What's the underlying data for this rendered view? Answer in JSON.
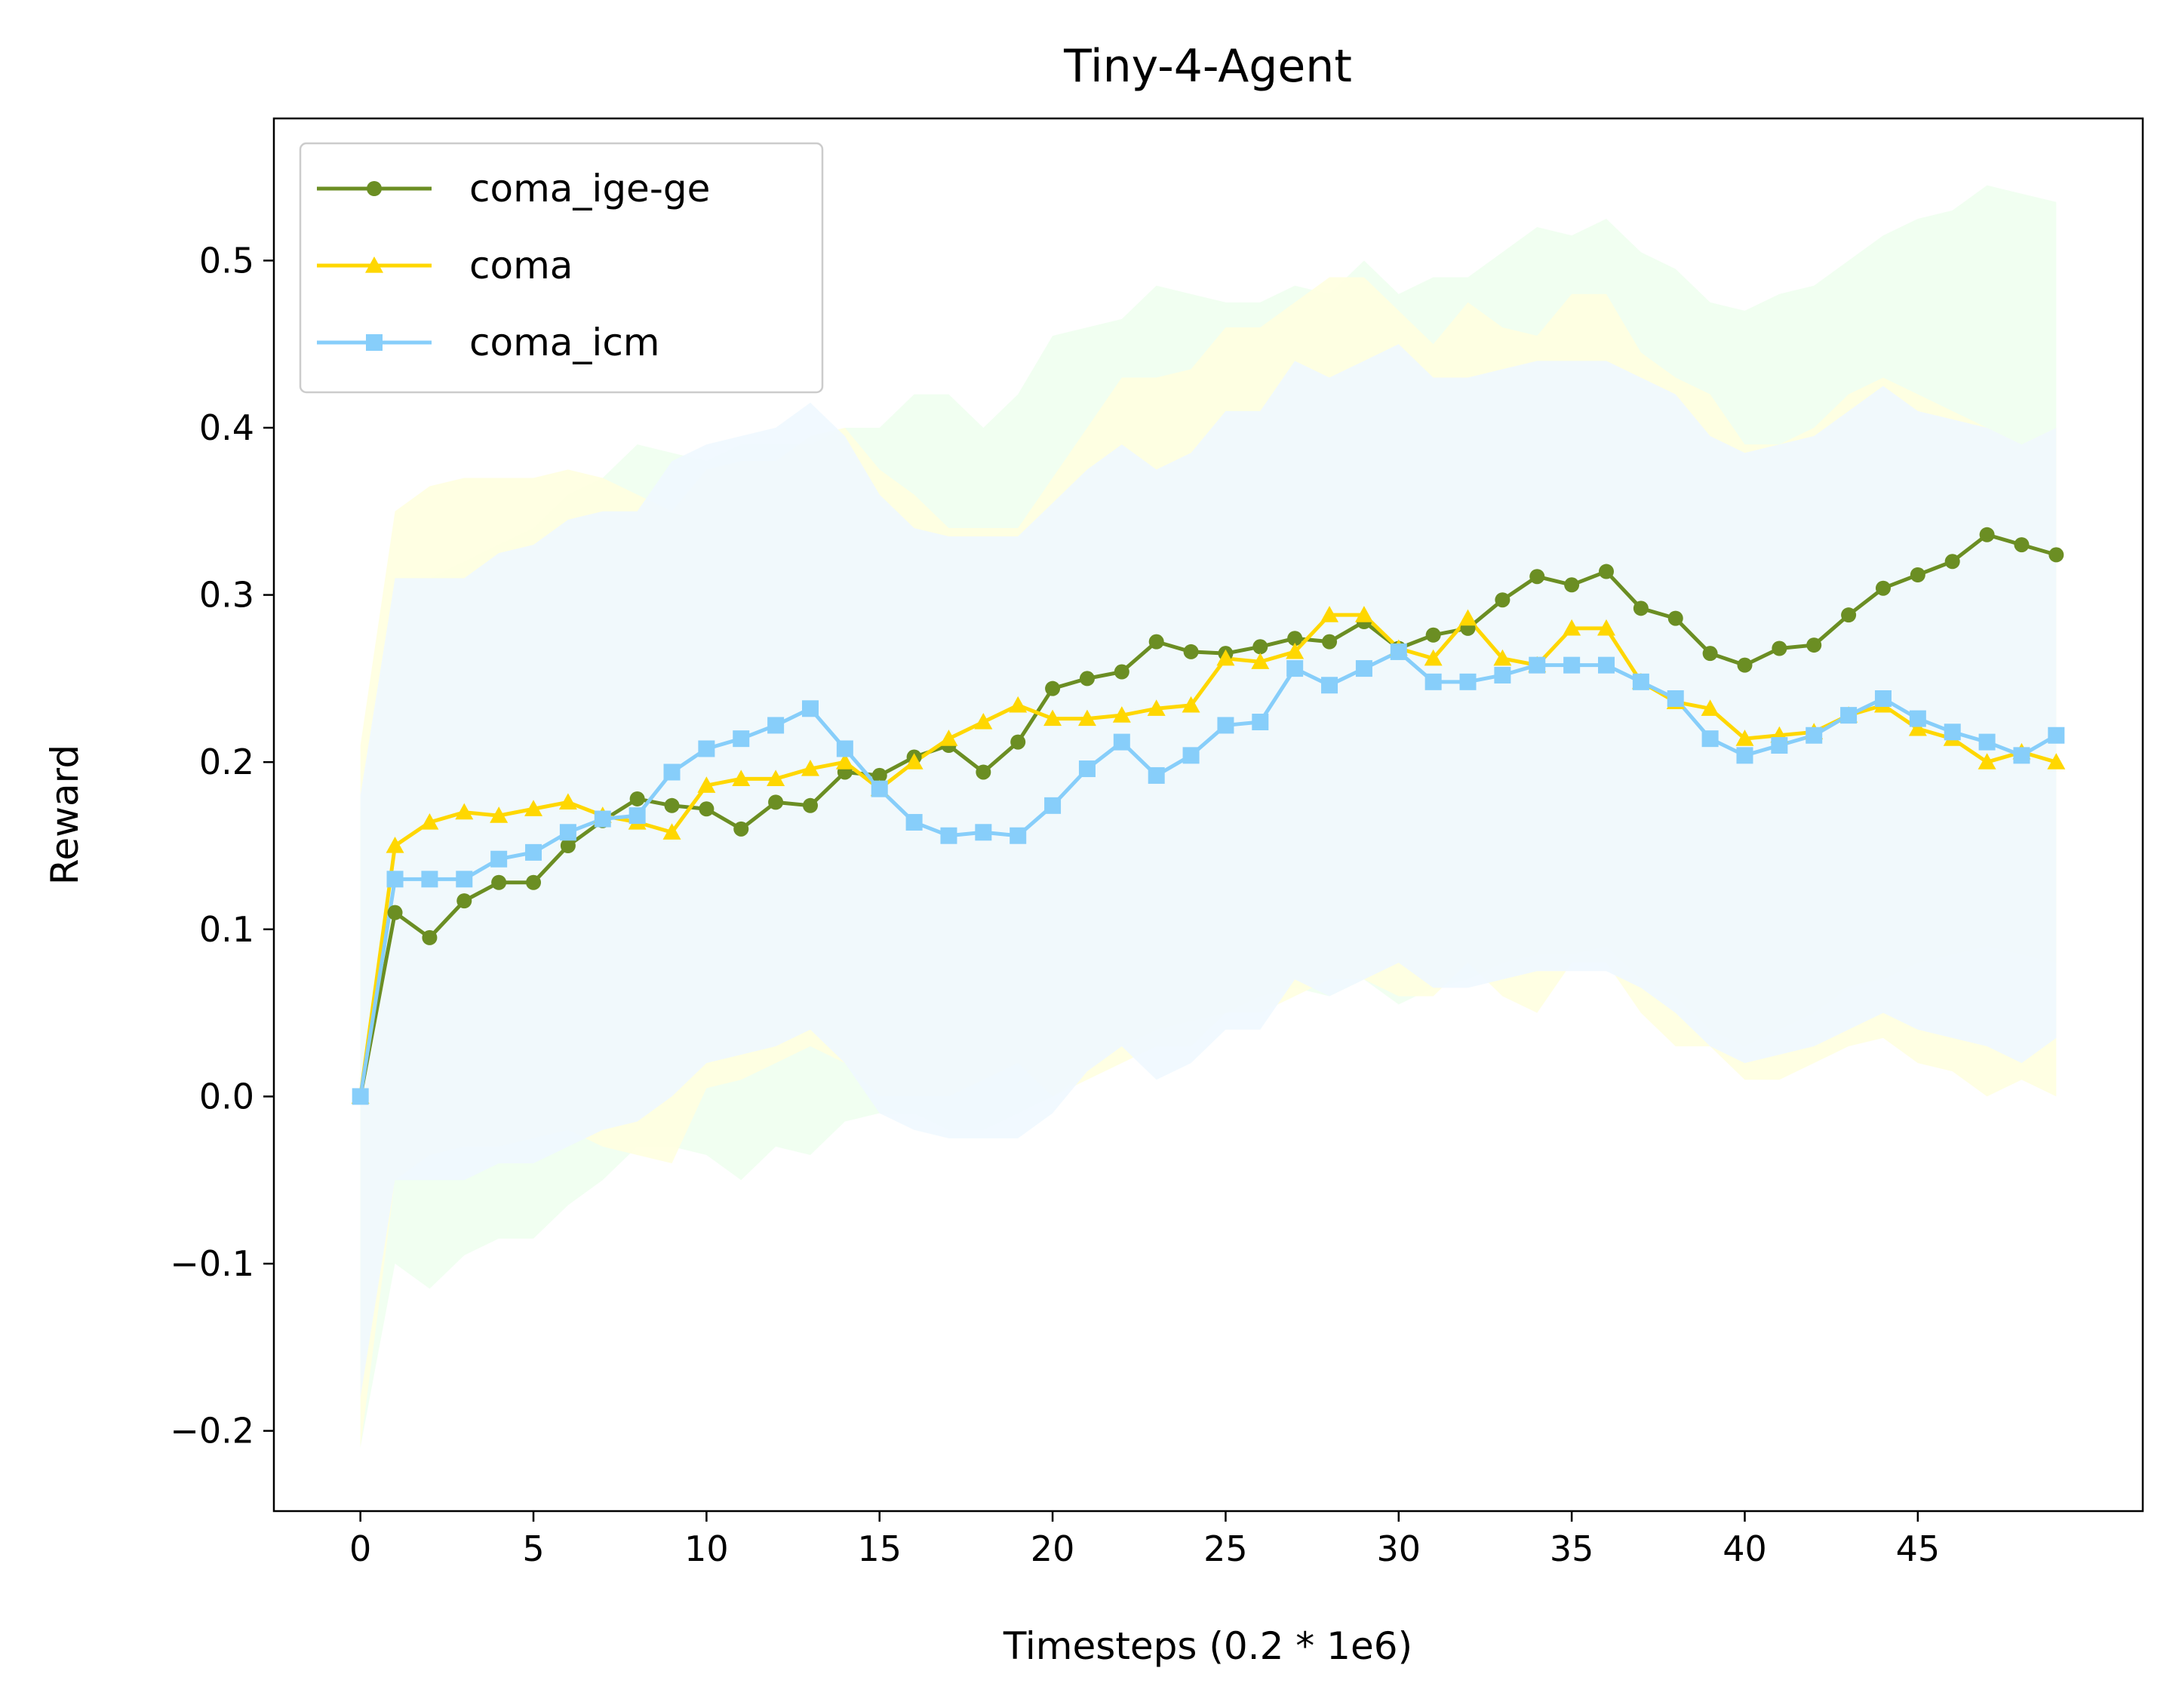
{
  "chart_data": {
    "type": "line",
    "title": "Tiny-4-Agent",
    "xlabel": "Timesteps (0.2 * 1e6)",
    "ylabel": "Reward",
    "xlim": [
      -2.5,
      51.5
    ],
    "ylim": [
      -0.248,
      0.585
    ],
    "xticks": [
      0,
      5,
      10,
      15,
      20,
      25,
      30,
      35,
      40,
      45
    ],
    "xtick_labels": [
      "0",
      "5",
      "10",
      "15",
      "20",
      "25",
      "30",
      "35",
      "40",
      "45"
    ],
    "yticks": [
      -0.2,
      -0.1,
      0.0,
      0.1,
      0.2,
      0.3,
      0.4,
      0.5
    ],
    "ytick_labels": [
      "−0.2",
      "−0.1",
      "0.0",
      "0.1",
      "0.2",
      "0.3",
      "0.4",
      "0.5"
    ],
    "grid": false,
    "legend_position": "top-left",
    "x": [
      0,
      1,
      2,
      3,
      4,
      5,
      6,
      7,
      8,
      9,
      10,
      11,
      12,
      13,
      14,
      15,
      16,
      17,
      18,
      19,
      20,
      21,
      22,
      23,
      24,
      25,
      26,
      27,
      28,
      29,
      30,
      31,
      32,
      33,
      34,
      35,
      36,
      37,
      38,
      39,
      40,
      41,
      42,
      43,
      44,
      45,
      46,
      47,
      48,
      49
    ],
    "series": [
      {
        "name": "coma_ige-ge",
        "color": "#6b8e23",
        "band_color": "#f0fff0",
        "marker": "circle",
        "values": [
          0.0,
          0.11,
          0.095,
          0.117,
          0.128,
          0.128,
          0.15,
          0.165,
          0.178,
          0.174,
          0.172,
          0.16,
          0.176,
          0.174,
          0.194,
          0.192,
          0.203,
          0.21,
          0.194,
          0.212,
          0.244,
          0.25,
          0.254,
          0.272,
          0.266,
          0.265,
          0.269,
          0.274,
          0.272,
          0.284,
          0.268,
          0.276,
          0.28,
          0.297,
          0.311,
          0.306,
          0.314,
          0.292,
          0.286,
          0.265,
          0.258,
          0.268,
          0.27,
          0.288,
          0.304,
          0.312,
          0.32,
          0.336,
          0.33,
          0.324
        ],
        "lower": [
          -0.21,
          -0.1,
          -0.115,
          -0.095,
          -0.085,
          -0.085,
          -0.065,
          -0.05,
          -0.03,
          -0.03,
          -0.035,
          -0.05,
          -0.03,
          -0.035,
          -0.015,
          -0.01,
          -0.01,
          -0.02,
          -0.02,
          -0.01,
          0.0,
          0.015,
          0.03,
          0.04,
          0.045,
          0.05,
          0.06,
          0.065,
          0.06,
          0.07,
          0.055,
          0.065,
          0.07,
          0.08,
          0.085,
          0.085,
          0.09,
          0.07,
          0.06,
          0.04,
          0.03,
          0.04,
          0.05,
          0.065,
          0.07,
          0.08,
          0.085,
          0.09,
          0.085,
          0.08
        ],
        "upper": [
          0.17,
          0.31,
          0.31,
          0.32,
          0.33,
          0.34,
          0.36,
          0.37,
          0.39,
          0.385,
          0.38,
          0.39,
          0.39,
          0.39,
          0.4,
          0.4,
          0.42,
          0.42,
          0.4,
          0.42,
          0.455,
          0.46,
          0.465,
          0.485,
          0.48,
          0.475,
          0.475,
          0.485,
          0.48,
          0.5,
          0.48,
          0.49,
          0.49,
          0.505,
          0.52,
          0.515,
          0.525,
          0.505,
          0.495,
          0.475,
          0.47,
          0.48,
          0.485,
          0.5,
          0.515,
          0.525,
          0.53,
          0.545,
          0.54,
          0.535
        ]
      },
      {
        "name": "coma",
        "color": "#ffd700",
        "band_color": "#ffffe0",
        "marker": "triangle",
        "values": [
          0.0,
          0.15,
          0.164,
          0.17,
          0.168,
          0.172,
          0.176,
          0.168,
          0.164,
          0.158,
          0.186,
          0.19,
          0.19,
          0.196,
          0.2,
          0.184,
          0.2,
          0.214,
          0.224,
          0.234,
          0.226,
          0.226,
          0.228,
          0.232,
          0.234,
          0.262,
          0.26,
          0.266,
          0.288,
          0.288,
          0.268,
          0.262,
          0.286,
          0.262,
          0.258,
          0.28,
          0.28,
          0.248,
          0.236,
          0.232,
          0.214,
          0.216,
          0.218,
          0.228,
          0.234,
          0.22,
          0.214,
          0.2,
          0.206,
          0.2
        ],
        "lower": [
          -0.21,
          -0.05,
          -0.035,
          -0.03,
          -0.03,
          -0.025,
          -0.02,
          -0.03,
          -0.035,
          -0.04,
          0.005,
          0.01,
          0.02,
          0.03,
          0.02,
          0.0,
          0.0,
          0.0,
          0.01,
          0.02,
          0.0,
          0.01,
          0.02,
          0.03,
          0.03,
          0.05,
          0.05,
          0.06,
          0.07,
          0.07,
          0.06,
          0.06,
          0.08,
          0.06,
          0.05,
          0.08,
          0.08,
          0.05,
          0.03,
          0.03,
          0.01,
          0.01,
          0.02,
          0.03,
          0.035,
          0.02,
          0.015,
          0.0,
          0.01,
          0.0
        ],
        "upper": [
          0.21,
          0.35,
          0.365,
          0.37,
          0.37,
          0.37,
          0.375,
          0.37,
          0.36,
          0.35,
          0.375,
          0.38,
          0.38,
          0.395,
          0.4,
          0.375,
          0.36,
          0.34,
          0.34,
          0.34,
          0.37,
          0.4,
          0.43,
          0.43,
          0.435,
          0.46,
          0.46,
          0.475,
          0.49,
          0.49,
          0.47,
          0.45,
          0.475,
          0.46,
          0.455,
          0.48,
          0.48,
          0.445,
          0.43,
          0.42,
          0.39,
          0.39,
          0.4,
          0.42,
          0.43,
          0.42,
          0.41,
          0.4,
          0.39,
          0.4
        ]
      },
      {
        "name": "coma_icm",
        "color": "#87cefa",
        "band_color": "#f0f8ff",
        "marker": "square",
        "values": [
          0.0,
          0.13,
          0.13,
          0.13,
          0.142,
          0.146,
          0.158,
          0.166,
          0.168,
          0.194,
          0.208,
          0.214,
          0.222,
          0.232,
          0.208,
          0.184,
          0.164,
          0.156,
          0.158,
          0.156,
          0.174,
          0.196,
          0.212,
          0.192,
          0.204,
          0.222,
          0.224,
          0.256,
          0.246,
          0.256,
          0.266,
          0.248,
          0.248,
          0.252,
          0.258,
          0.258,
          0.258,
          0.248,
          0.238,
          0.214,
          0.204,
          0.21,
          0.216,
          0.228,
          0.238,
          0.226,
          0.218,
          0.212,
          0.204,
          0.216
        ],
        "lower": [
          -0.18,
          -0.05,
          -0.05,
          -0.05,
          -0.04,
          -0.04,
          -0.03,
          -0.02,
          -0.015,
          0.0,
          0.02,
          0.025,
          0.03,
          0.04,
          0.02,
          -0.01,
          -0.02,
          -0.025,
          -0.025,
          -0.025,
          -0.01,
          0.015,
          0.03,
          0.01,
          0.02,
          0.04,
          0.04,
          0.07,
          0.06,
          0.07,
          0.08,
          0.065,
          0.065,
          0.07,
          0.075,
          0.075,
          0.075,
          0.065,
          0.05,
          0.03,
          0.02,
          0.025,
          0.03,
          0.04,
          0.05,
          0.04,
          0.035,
          0.03,
          0.02,
          0.035
        ],
        "upper": [
          0.18,
          0.31,
          0.31,
          0.31,
          0.325,
          0.33,
          0.345,
          0.35,
          0.35,
          0.38,
          0.39,
          0.395,
          0.4,
          0.415,
          0.395,
          0.36,
          0.34,
          0.335,
          0.335,
          0.335,
          0.355,
          0.375,
          0.39,
          0.375,
          0.385,
          0.41,
          0.41,
          0.44,
          0.43,
          0.44,
          0.45,
          0.43,
          0.43,
          0.435,
          0.44,
          0.44,
          0.44,
          0.43,
          0.42,
          0.395,
          0.385,
          0.39,
          0.395,
          0.41,
          0.425,
          0.41,
          0.405,
          0.4,
          0.39,
          0.4
        ]
      }
    ]
  }
}
